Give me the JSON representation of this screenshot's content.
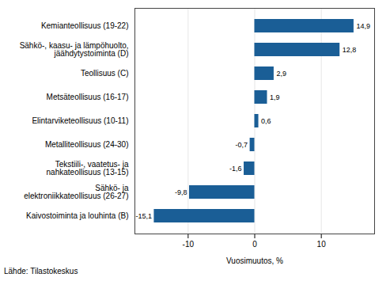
{
  "chart_data": {
    "type": "bar",
    "orientation": "horizontal",
    "categories": [
      "Kaivostoiminta ja louhinta (B)",
      "Sähkö- ja\nelektroniikkateollisuus (26-27)",
      "Tekstiili-, vaatetus- ja\nnahkateollisuus (13-15)",
      "Metalliteollisuus (24-30)",
      "Elintarviketeollisuus (10-11)",
      "Metsäteollisuus (16-17)",
      "Teollisuus (C)",
      "Sähkö-, kaasu- ja lämpöhuolto,\njäähdytystoiminta (D)",
      "Kemianteollisuus (19-22)"
    ],
    "values": [
      -15.1,
      -9.8,
      -1.6,
      -0.7,
      0.6,
      1.9,
      2.9,
      12.8,
      14.9
    ],
    "value_labels": [
      "-15,1",
      "-9,8",
      "-1,6",
      "-0,7",
      "0,6",
      "1,9",
      "2,9",
      "12,8",
      "14,9"
    ],
    "data_labels": true,
    "color": "#1a5e96",
    "xlabel": "Vuosimuutos, %",
    "xlim": [
      -18,
      18
    ],
    "xticks": [
      -10,
      0,
      10
    ],
    "grid": true,
    "annotations": [
      "Lähde: Tilastokeskus"
    ]
  }
}
